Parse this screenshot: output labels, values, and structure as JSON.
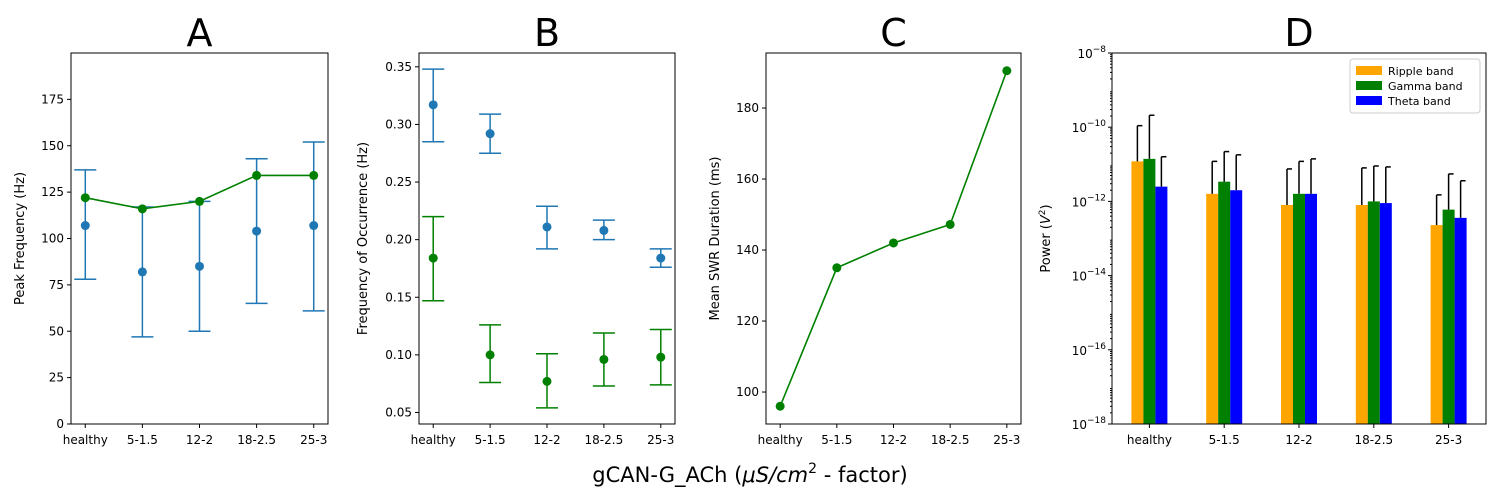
{
  "figure": {
    "xlabel_main": "gCAN-G_ACh (",
    "xlabel_unit": "μS/cm",
    "xlabel_sup": "2",
    "xlabel_rest": " - factor)"
  },
  "chart_data": [
    {
      "panel": "A",
      "type": "line",
      "title": "A",
      "ylabel": "Peak Frequency (Hz)",
      "categories": [
        "healthy",
        "5-1.5",
        "12-2",
        "18-2.5",
        "25-3"
      ],
      "ylim": [
        0,
        200
      ],
      "yticks": [
        0,
        25,
        50,
        75,
        100,
        125,
        150,
        175
      ],
      "series": [
        {
          "style": "errorbar",
          "color": "#1f77b4",
          "values": [
            107,
            82,
            85,
            104,
            107
          ],
          "lower": [
            78,
            47,
            50,
            65,
            61
          ],
          "upper": [
            137,
            117,
            120,
            143,
            152
          ]
        },
        {
          "style": "line",
          "color": "#008000",
          "values": [
            122,
            116,
            120,
            134,
            134
          ]
        }
      ]
    },
    {
      "panel": "B",
      "type": "scatter",
      "title": "B",
      "ylabel": "Frequency of Occurrence (Hz)",
      "categories": [
        "healthy",
        "5-1.5",
        "12-2",
        "18-2.5",
        "25-3"
      ],
      "ylim": [
        0.04,
        0.362
      ],
      "yticks": [
        0.05,
        0.1,
        0.15,
        0.2,
        0.25,
        0.3,
        0.35
      ],
      "yticklabels": [
        "0.05",
        "0.10",
        "0.15",
        "0.20",
        "0.25",
        "0.30",
        "0.35"
      ],
      "series": [
        {
          "style": "errorbar",
          "color": "#1f77b4",
          "values": [
            0.317,
            0.292,
            0.211,
            0.208,
            0.184
          ],
          "lower": [
            0.285,
            0.275,
            0.192,
            0.2,
            0.176
          ],
          "upper": [
            0.348,
            0.309,
            0.229,
            0.217,
            0.192
          ]
        },
        {
          "style": "errorbar",
          "color": "#008000",
          "values": [
            0.184,
            0.1,
            0.077,
            0.096,
            0.098
          ],
          "lower": [
            0.147,
            0.076,
            0.054,
            0.073,
            0.074
          ],
          "upper": [
            0.22,
            0.126,
            0.101,
            0.119,
            0.122
          ]
        }
      ]
    },
    {
      "panel": "C",
      "type": "line",
      "title": "C",
      "ylabel": "Mean SWR Duration (ms)",
      "categories": [
        "healthy",
        "5-1.5",
        "12-2",
        "18-2.5",
        "25-3"
      ],
      "ylim": [
        91,
        195.5
      ],
      "yticks": [
        100,
        120,
        140,
        160,
        180
      ],
      "series": [
        {
          "style": "line",
          "color": "#008000",
          "values": [
            96,
            135,
            142,
            147.2,
            190.5
          ]
        }
      ]
    },
    {
      "panel": "D",
      "type": "bar",
      "title": "D",
      "ylabel_main": "Power (",
      "ylabel_unit": "V",
      "ylabel_sup": "2",
      "ylabel_end": ")",
      "yscale": "log",
      "categories": [
        "healthy",
        "5-1.5",
        "12-2",
        "18-2.5",
        "25-3"
      ],
      "ylim_exp": [
        -18,
        -8
      ],
      "ytick_exps": [
        -18,
        -16,
        -14,
        -12,
        -10,
        -8
      ],
      "ytick_base": "10",
      "ytick_sups": [
        "−18",
        "−16",
        "−14",
        "−12",
        "−10",
        "−8"
      ],
      "legend": {
        "position": "upper right"
      },
      "series": [
        {
          "name": "Ripple band",
          "color": "#ffa500",
          "values": [
            1.2e-11,
            1.6e-12,
            8e-13,
            8e-13,
            2.3e-13
          ],
          "upper": [
            1.1e-10,
            1.2e-11,
            7.5e-12,
            8e-12,
            1.5e-12
          ]
        },
        {
          "name": "Gamma band",
          "color": "#008000",
          "values": [
            1.4e-11,
            3.4e-12,
            1.6e-12,
            1e-12,
            6e-13
          ],
          "upper": [
            2.1e-10,
            2.2e-11,
            1.2e-11,
            9e-12,
            5.5e-12
          ]
        },
        {
          "name": "Theta band",
          "color": "#0000ff",
          "values": [
            2.5e-12,
            2e-12,
            1.6e-12,
            9e-13,
            3.6e-13
          ],
          "upper": [
            1.6e-11,
            1.8e-11,
            1.4e-11,
            8.5e-12,
            3.6e-12
          ]
        }
      ]
    }
  ]
}
